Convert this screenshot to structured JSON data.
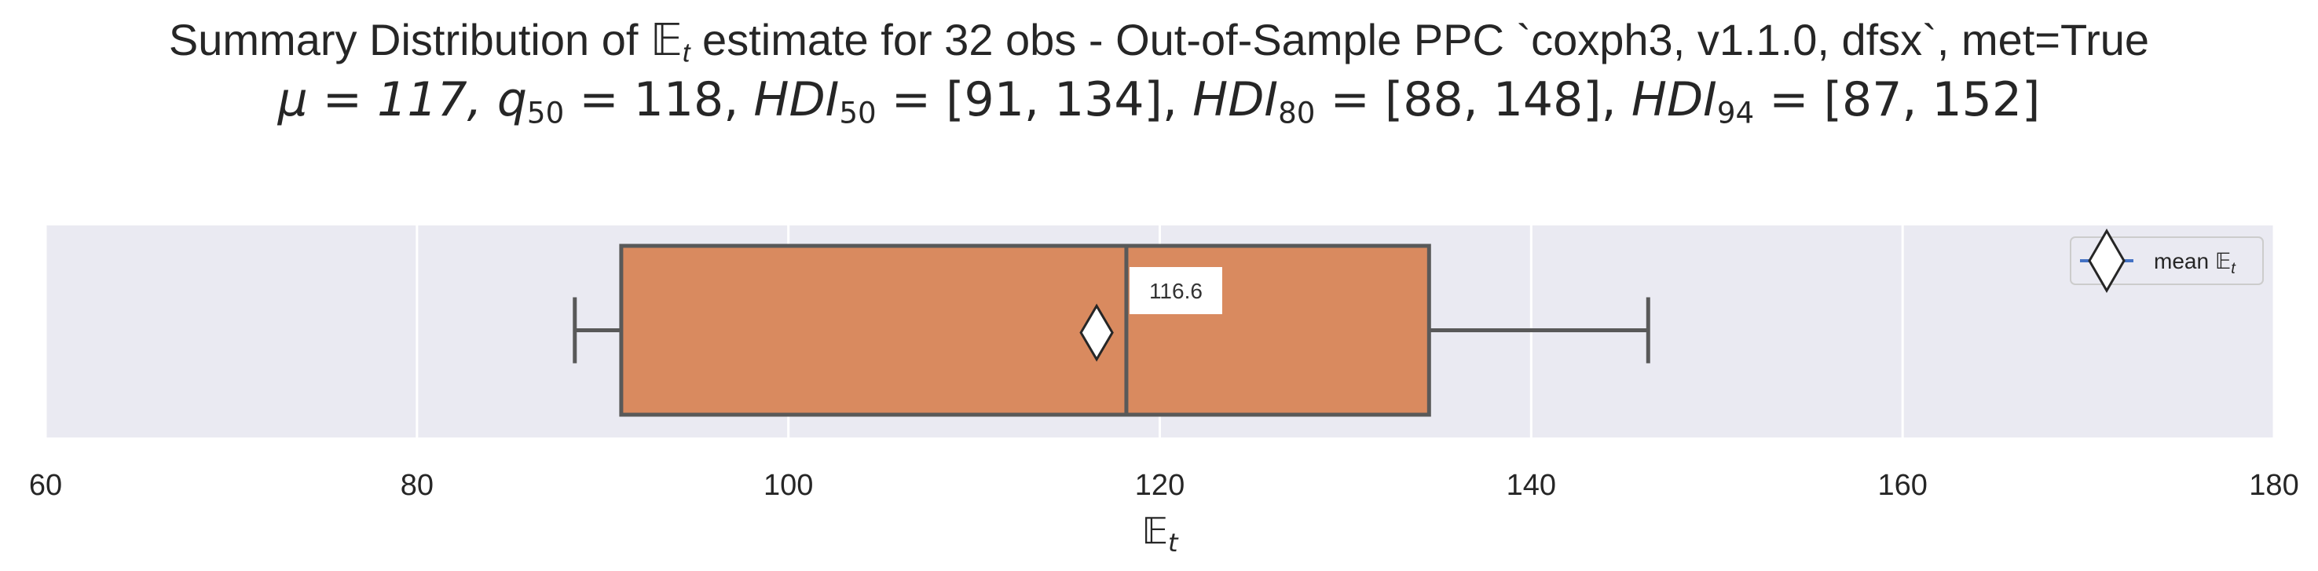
{
  "title": {
    "line1_pre": "Summary Distribution of ",
    "line1_sym": "𝔼",
    "line1_sub": "t",
    "line1_post": " estimate for 32 obs - Out-of-Sample PPC `coxph3, v1.1.0, dfsx`, met=True",
    "line2_mu": "μ = 117, ",
    "line2_q": "q",
    "line2_qsub": "50",
    "line2_qval": " = 118, ",
    "line2_h1": "HDI",
    "line2_h1sub": "50",
    "line2_h1val": " = [91, 134], ",
    "line2_h2": "HDI",
    "line2_h2sub": "80",
    "line2_h2val": " = [88, 148], ",
    "line2_h3": "HDI",
    "line2_h3sub": "94",
    "line2_h3val": " = [87, 152]"
  },
  "colors": {
    "plot_bg": "#eaeaf2",
    "box_fill": "#d98a5f",
    "box_edge": "#595959",
    "grid": "#ffffff",
    "text": "#262626",
    "legend_line": "#4472c4"
  },
  "chart_data": {
    "type": "box",
    "orientation": "horizontal",
    "box": {
      "whisker_low": 88.5,
      "q1": 91,
      "median": 118.2,
      "q3": 134.5,
      "whisker_high": 146.3,
      "mean": 116.6
    },
    "mean_label": "116.6",
    "xlim": [
      60,
      180
    ],
    "xticks": [
      60,
      80,
      100,
      120,
      140,
      160,
      180
    ],
    "xlabel": "𝔼",
    "xlabel_sub": "t",
    "grid": true,
    "legend": {
      "position": "top-right",
      "label": "mean 𝔼",
      "label_sub": "t"
    }
  }
}
